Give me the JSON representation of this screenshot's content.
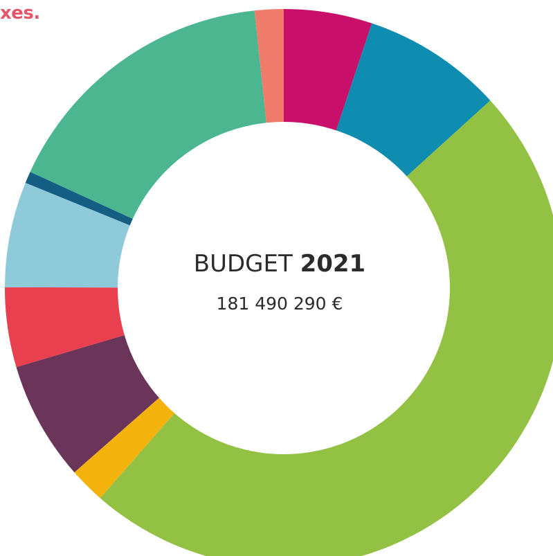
{
  "header_fragment": "xes.",
  "chart_data": {
    "type": "donut",
    "center_label": {
      "prefix": "BUDGET",
      "year": "2021",
      "amount": "181 490 290 €"
    },
    "total": 181490290,
    "start_angle_deg": 0,
    "segments": [
      {
        "color": "#c8106a",
        "value": 16.5
      },
      {
        "color": "#0e8db1",
        "value": 26.3
      },
      {
        "color": "#92c144",
        "value": 155.4
      },
      {
        "color": "#f4b20d",
        "value": 6.7
      },
      {
        "color": "#6a3558",
        "value": 22.3
      },
      {
        "color": "#e8404f",
        "value": 14.9
      },
      {
        "color": "#8ecad9",
        "value": 19.7
      },
      {
        "color": "#135e82",
        "value": 2.2
      },
      {
        "color": "#4bb690",
        "value": 53.2
      },
      {
        "color": "#f07d6b",
        "value": 5.4
      }
    ]
  }
}
